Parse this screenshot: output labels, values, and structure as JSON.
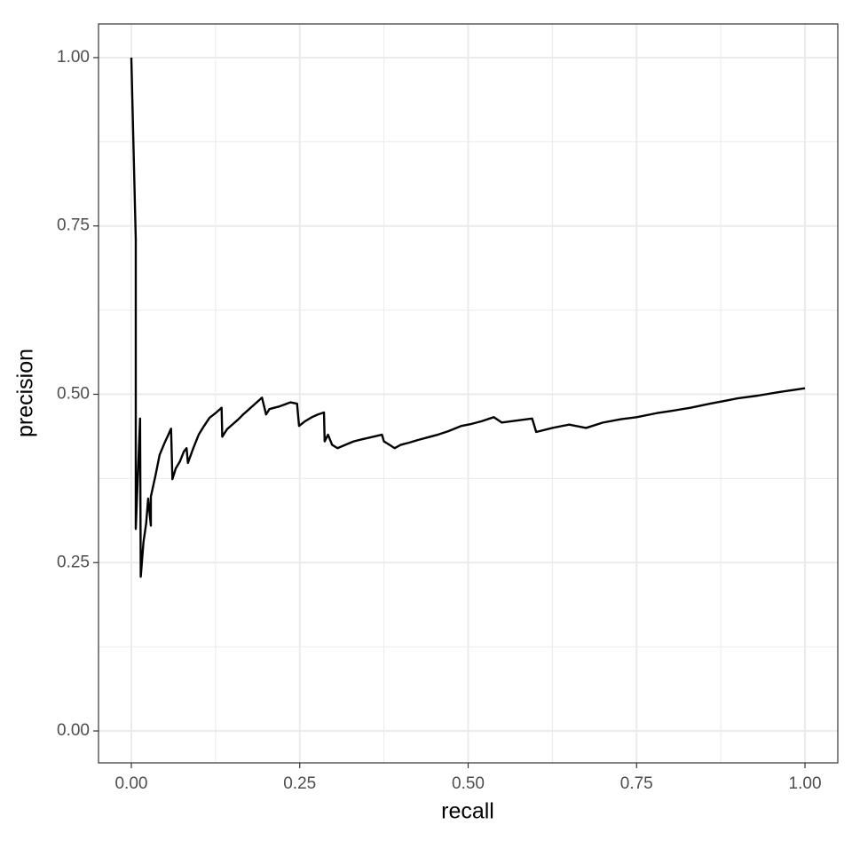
{
  "chart_data": {
    "type": "line",
    "xlabel": "recall",
    "ylabel": "precision",
    "x": [
      0,
      0.0066,
      0.0066,
      0.013,
      0.014,
      0.018,
      0.022,
      0.025,
      0.029,
      0.029,
      0.036,
      0.042,
      0.049,
      0.055,
      0.059,
      0.061,
      0.066,
      0.072,
      0.078,
      0.082,
      0.084,
      0.092,
      0.1,
      0.108,
      0.116,
      0.125,
      0.134,
      0.135,
      0.142,
      0.15,
      0.158,
      0.166,
      0.175,
      0.185,
      0.194,
      0.2,
      0.205,
      0.212,
      0.22,
      0.228,
      0.236,
      0.246,
      0.249,
      0.258,
      0.268,
      0.277,
      0.286,
      0.287,
      0.292,
      0.298,
      0.306,
      0.318,
      0.33,
      0.342,
      0.355,
      0.372,
      0.375,
      0.383,
      0.391,
      0.4,
      0.412,
      0.425,
      0.44,
      0.455,
      0.47,
      0.49,
      0.505,
      0.52,
      0.538,
      0.55,
      0.565,
      0.58,
      0.595,
      0.601,
      0.625,
      0.65,
      0.675,
      0.7,
      0.727,
      0.75,
      0.78,
      0.8,
      0.83,
      0.859,
      0.88,
      0.9,
      0.93,
      0.96,
      1.0
    ],
    "series": [
      {
        "color": "#000000",
        "values": [
          1.0,
          0.73,
          0.3,
          0.464,
          0.229,
          0.28,
          0.308,
          0.345,
          0.305,
          0.348,
          0.38,
          0.41,
          0.427,
          0.44,
          0.449,
          0.374,
          0.39,
          0.4,
          0.415,
          0.42,
          0.398,
          0.42,
          0.44,
          0.453,
          0.465,
          0.472,
          0.48,
          0.437,
          0.448,
          0.455,
          0.462,
          0.47,
          0.478,
          0.487,
          0.495,
          0.47,
          0.478,
          0.48,
          0.482,
          0.485,
          0.488,
          0.486,
          0.453,
          0.46,
          0.466,
          0.47,
          0.473,
          0.43,
          0.44,
          0.425,
          0.42,
          0.425,
          0.43,
          0.433,
          0.436,
          0.44,
          0.43,
          0.425,
          0.42,
          0.425,
          0.428,
          0.432,
          0.436,
          0.44,
          0.445,
          0.453,
          0.456,
          0.46,
          0.466,
          0.458,
          0.46,
          0.462,
          0.464,
          0.444,
          0.45,
          0.455,
          0.45,
          0.458,
          0.463,
          0.466,
          0.472,
          0.475,
          0.48,
          0.486,
          0.49,
          0.494,
          0.498,
          0.503,
          0.509
        ]
      }
    ],
    "xlim": [
      -0.0487,
      1.0487
    ],
    "ylim": [
      -0.0474,
      1.05
    ],
    "xticks": [
      {
        "value": 0,
        "label": "0.00"
      },
      {
        "value": 0.25,
        "label": "0.25"
      },
      {
        "value": 0.5,
        "label": "0.50"
      },
      {
        "value": 0.75,
        "label": "0.75"
      },
      {
        "value": 1,
        "label": "1.00"
      }
    ],
    "yticks": [
      {
        "value": 0,
        "label": "0.00"
      },
      {
        "value": 0.25,
        "label": "0.25"
      },
      {
        "value": 0.5,
        "label": "0.50"
      },
      {
        "value": 0.75,
        "label": "0.75"
      },
      {
        "value": 1,
        "label": "1.00"
      }
    ],
    "xminor": [
      0.125,
      0.375,
      0.625,
      0.875
    ],
    "yminor": [
      0.125,
      0.375,
      0.625,
      0.875
    ],
    "grid": true
  }
}
